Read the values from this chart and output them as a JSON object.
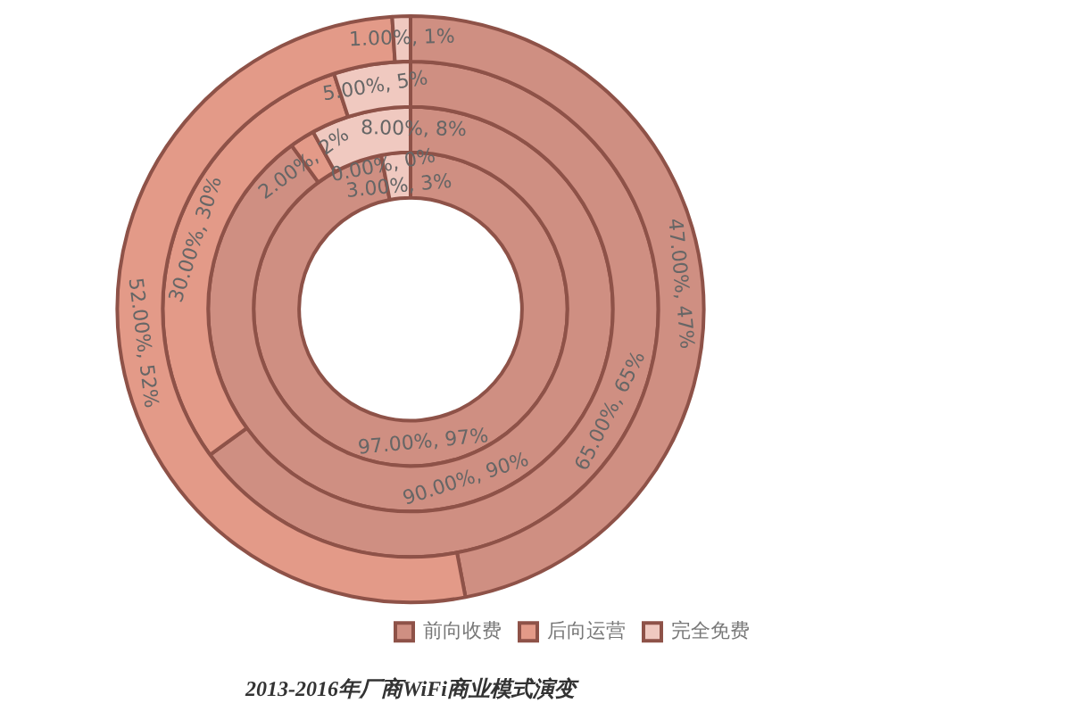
{
  "chart_data": {
    "type": "donut",
    "title": "2013-2016年厂商WiFi商业模式演变",
    "categories": [
      "前向收费",
      "后向运营",
      "完全免费"
    ],
    "colors": [
      "#cf8f82",
      "#e39a88",
      "#f0c9c0"
    ],
    "legend": "bottom right",
    "series": [
      {
        "values": [
          97,
          0,
          3
        ],
        "value_labels": [
          "97.00%, 97%",
          "0.00%, 0%",
          "3.00%, 3%"
        ]
      },
      {
        "values": [
          90,
          2,
          8
        ],
        "value_labels": [
          "90.00%, 90%",
          "2.00%, 2%",
          "8.00%, 8%"
        ]
      },
      {
        "values": [
          65,
          30,
          5
        ],
        "value_labels": [
          "65.00%, 65%",
          "30.00%, 30%",
          "5.00%, 5%"
        ]
      },
      {
        "values": [
          47,
          52,
          1
        ],
        "value_labels": [
          "47.00%, 47%",
          "52.00%, 52%",
          "1.00%, 1%"
        ]
      }
    ]
  }
}
